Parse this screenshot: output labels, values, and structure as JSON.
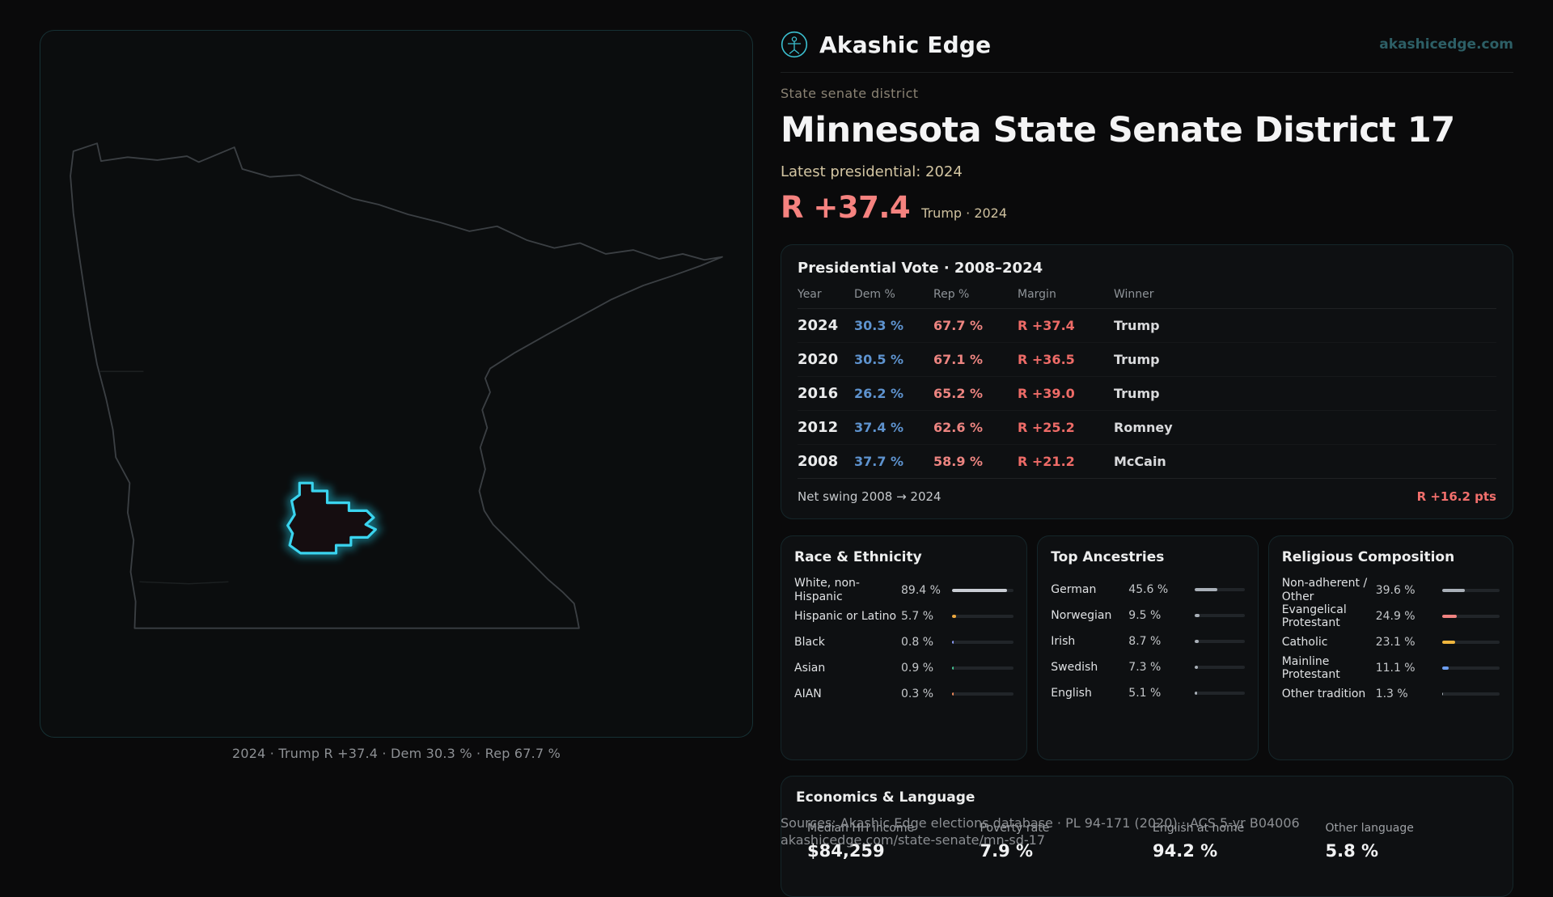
{
  "brand": {
    "name": "Akashic Edge",
    "domain": "akashicedge.com"
  },
  "page": {
    "kicker": "State senate district",
    "title": "Minnesota State Senate District 17",
    "latest_label": "Latest presidential: 2024",
    "margin_value": "R +37.4",
    "margin_context": "Trump · 2024"
  },
  "map": {
    "caption": "2024 · Trump R +37.4 · Dem 30.3 % · Rep 67.7 %"
  },
  "presidential": {
    "title": "Presidential Vote · 2008–2024",
    "columns": [
      "Year",
      "Dem %",
      "Rep %",
      "Margin",
      "Winner"
    ],
    "rows": [
      {
        "year": "2024",
        "dem": "30.3 %",
        "rep": "67.7 %",
        "margin": "R +37.4",
        "winner": "Trump"
      },
      {
        "year": "2020",
        "dem": "30.5 %",
        "rep": "67.1 %",
        "margin": "R +36.5",
        "winner": "Trump"
      },
      {
        "year": "2016",
        "dem": "26.2 %",
        "rep": "65.2 %",
        "margin": "R +39.0",
        "winner": "Trump"
      },
      {
        "year": "2012",
        "dem": "37.4 %",
        "rep": "62.6 %",
        "margin": "R +25.2",
        "winner": "Romney"
      },
      {
        "year": "2008",
        "dem": "37.7 %",
        "rep": "58.9 %",
        "margin": "R +21.2",
        "winner": "McCain"
      }
    ],
    "net_swing_label": "Net swing 2008 → 2024",
    "net_swing_value": "R +16.2 pts"
  },
  "race": {
    "title": "Race & Ethnicity",
    "items": [
      {
        "label": "White, non-Hispanic",
        "value": "89.4 %",
        "pct": 89.4,
        "color": "#c9cdd4"
      },
      {
        "label": "Hispanic or Latino",
        "value": "5.7 %",
        "pct": 5.7,
        "color": "#eda83f"
      },
      {
        "label": "Black",
        "value": "0.8 %",
        "pct": 0.8,
        "color": "#8b9bf4"
      },
      {
        "label": "Asian",
        "value": "0.9 %",
        "pct": 0.9,
        "color": "#46c695"
      },
      {
        "label": "AIAN",
        "value": "0.3 %",
        "pct": 0.3,
        "color": "#ef8a5a"
      }
    ]
  },
  "ancestries": {
    "title": "Top Ancestries",
    "items": [
      {
        "label": "German",
        "value": "45.6 %",
        "pct": 45.6,
        "color": "#a9b0b8"
      },
      {
        "label": "Norwegian",
        "value": "9.5 %",
        "pct": 9.5,
        "color": "#a9b0b8"
      },
      {
        "label": "Irish",
        "value": "8.7 %",
        "pct": 8.7,
        "color": "#a9b0b8"
      },
      {
        "label": "Swedish",
        "value": "7.3 %",
        "pct": 7.3,
        "color": "#a9b0b8"
      },
      {
        "label": "English",
        "value": "5.1 %",
        "pct": 5.1,
        "color": "#a9b0b8"
      }
    ]
  },
  "religion": {
    "title": "Religious Composition",
    "items": [
      {
        "label": "Non-adherent / Other",
        "value": "39.6 %",
        "pct": 39.6,
        "color": "#a9b0b8"
      },
      {
        "label": "Evangelical Protestant",
        "value": "24.9 %",
        "pct": 24.9,
        "color": "#f08381"
      },
      {
        "label": "Catholic",
        "value": "23.1 %",
        "pct": 23.1,
        "color": "#efb63e"
      },
      {
        "label": "Mainline Protestant",
        "value": "11.1 %",
        "pct": 11.1,
        "color": "#6d9ef0"
      },
      {
        "label": "Other tradition",
        "value": "1.3 %",
        "pct": 1.3,
        "color": "#a9b0b8"
      }
    ]
  },
  "economics": {
    "title": "Economics & Language",
    "stats": [
      {
        "label": "Median HH income",
        "value": "$84,259"
      },
      {
        "label": "Poverty rate",
        "value": "7.9 %"
      },
      {
        "label": "English at home",
        "value": "94.2 %"
      },
      {
        "label": "Other language",
        "value": "5.8 %"
      }
    ]
  },
  "footer": {
    "sources": "Sources: Akashic Edge elections database · PL 94-171 (2020) · ACS 5-yr B04006",
    "permalink": "akashicedge.com/state-senate/mn-sd-17"
  }
}
